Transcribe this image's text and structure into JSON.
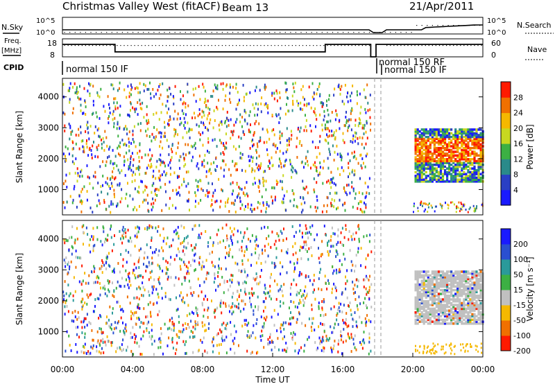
{
  "header": {
    "title": "Christmas Valley West (fitACF)",
    "beam": "Beam 13",
    "date": "21/Apr/2011"
  },
  "chart_data": [
    {
      "type": "line",
      "panel": "N.Sky / N.Search",
      "left_label": "N.Sky",
      "right_label": "N.Search",
      "left_ticks": [
        "10^5",
        "10^0"
      ],
      "right_ticks": [
        "10^5",
        "10^0"
      ]
    },
    {
      "type": "line",
      "panel": "Freq / Nave",
      "left_label": "Freq.",
      "left_unit": "[MHz]",
      "right_label": "Nave",
      "left_ticks": [
        "18",
        "8"
      ],
      "right_ticks": [
        "60",
        "0"
      ],
      "freq_segments": [
        {
          "start": 0.0,
          "end": 3.0,
          "freq_mhz": 15.5
        },
        {
          "start": 3.0,
          "end": 15.0,
          "freq_mhz": 11.0
        },
        {
          "start": 15.0,
          "end": 17.6,
          "freq_mhz": 15.5
        },
        {
          "start": 17.6,
          "end": 17.9,
          "freq_mhz": 8.0
        },
        {
          "start": 17.9,
          "end": 18.3,
          "freq_mhz": 15.5
        },
        {
          "start": 18.3,
          "end": 24.0,
          "freq_mhz": 15.5
        }
      ]
    },
    {
      "type": "table",
      "panel": "CPID",
      "label": "CPID",
      "entries": [
        {
          "text": "normal 150 IF",
          "start_hour": 0.0
        },
        {
          "text": "normal 150 RF",
          "start_hour": 18.0
        },
        {
          "text": "normal 150 IF",
          "start_hour": 18.3
        }
      ]
    },
    {
      "type": "heatmap",
      "panel": "Power",
      "ylabel": "Slant Range [km]",
      "yticks": [
        1000,
        2000,
        3000,
        4000
      ],
      "ylim": [
        180,
        4600
      ],
      "xlim": [
        0,
        24
      ],
      "colorbar_label": "Power [dB]",
      "colorbar_ticks": [
        4,
        8,
        12,
        16,
        20,
        24,
        28
      ],
      "colorbar_range": [
        0,
        32
      ],
      "colors": [
        "#1a1aff",
        "#2a3fc4",
        "#2a8a8a",
        "#3cb043",
        "#c8d820",
        "#f5b800",
        "#f07000",
        "#ff1a00"
      ],
      "data_windows": [
        {
          "start_hour": 0.0,
          "end_hour": 17.6,
          "pattern": "scatter",
          "range_km": [
            300,
            4500
          ]
        },
        {
          "start_hour": 20.0,
          "end_hour": 24.0,
          "pattern": "band",
          "range_km": [
            1300,
            3000
          ]
        }
      ]
    },
    {
      "type": "heatmap",
      "panel": "Velocity",
      "ylabel": "Slant Range [km]",
      "yticks": [
        1000,
        2000,
        3000,
        4000
      ],
      "ylim": [
        180,
        4600
      ],
      "xlim": [
        0,
        24
      ],
      "xlabel": "Time UT",
      "xticks": [
        "00:00",
        "04:00",
        "08:00",
        "12:00",
        "16:00",
        "20:00",
        "00:00"
      ],
      "colorbar_label": "Velocity [m s⁻¹]",
      "colorbar_ticks": [
        200,
        100,
        50,
        15,
        -15,
        -50,
        -100,
        -200
      ],
      "colors": [
        "#1a1aff",
        "#2a4fd0",
        "#2a9a9a",
        "#3cb043",
        "#c0c0c0",
        "#f5b800",
        "#f07000",
        "#ff1a00"
      ],
      "data_windows": [
        {
          "start_hour": 0.0,
          "end_hour": 17.6,
          "pattern": "scatter",
          "range_km": [
            300,
            4500
          ]
        },
        {
          "start_hour": 20.0,
          "end_hour": 24.0,
          "pattern": "band",
          "range_km": [
            1300,
            3000
          ]
        }
      ]
    }
  ]
}
